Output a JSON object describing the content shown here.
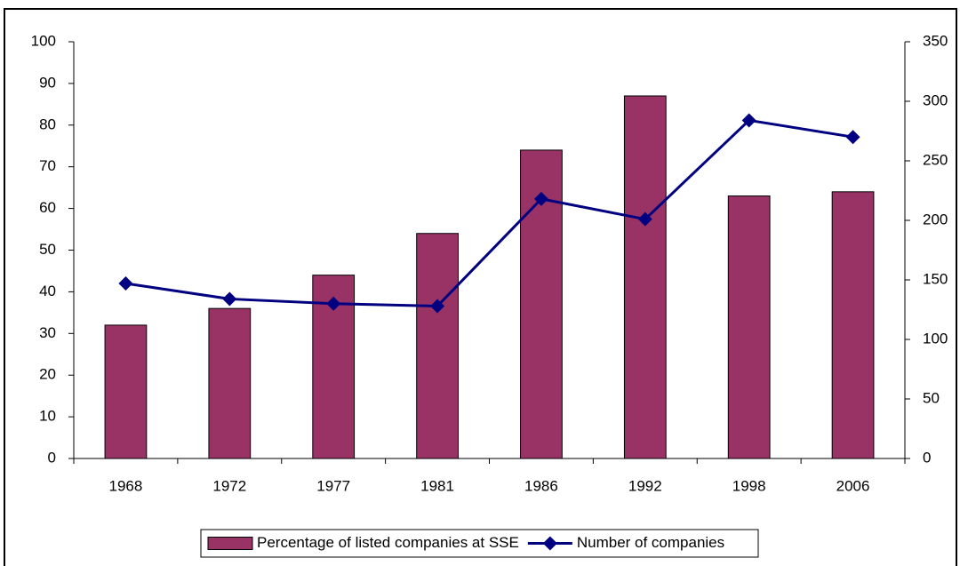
{
  "chart_data": {
    "type": "bar",
    "categories": [
      "1968",
      "1972",
      "1977",
      "1981",
      "1986",
      "1992",
      "1998",
      "2006"
    ],
    "series": [
      {
        "name": "Percentage of listed companies at SSE",
        "color": "#993366",
        "values": [
          32,
          36,
          44,
          54,
          74,
          87,
          63,
          64
        ]
      },
      {
        "name": "Number of companies",
        "color": "#000080",
        "type": "line",
        "axis": "y2",
        "values": [
          147,
          134,
          130,
          128,
          218,
          201,
          284,
          270
        ]
      }
    ],
    "ylim": [
      0,
      100
    ],
    "yticks": [
      0,
      10,
      20,
      30,
      40,
      50,
      60,
      70,
      80,
      90,
      100
    ],
    "y2lim": [
      0,
      350
    ],
    "y2ticks": [
      0,
      50,
      100,
      150,
      200,
      250,
      300,
      350
    ],
    "grid": false,
    "legend": "bottom"
  }
}
